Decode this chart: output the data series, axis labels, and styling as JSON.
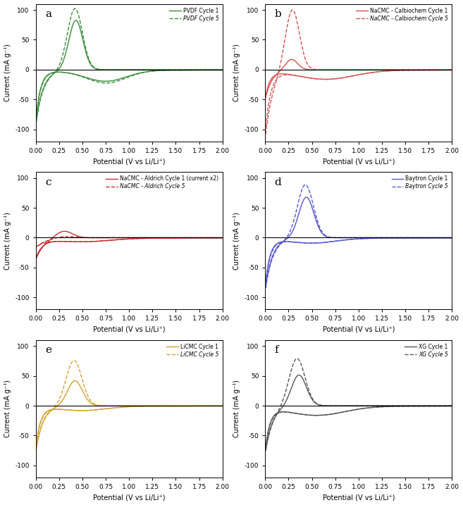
{
  "panels": [
    "a",
    "b",
    "c",
    "d",
    "e",
    "f"
  ],
  "colors": {
    "a": "#3a8a3a",
    "b": "#d45050",
    "c": "#c43030",
    "d": "#5555cc",
    "e": "#d4a030",
    "f": "#555555"
  },
  "legends": {
    "a": [
      "PVDF Cycle 1",
      "PVDF Cycle 5"
    ],
    "b": [
      "NaCMC - Calbiochem Cycle 1",
      "NaCMC - Calbiochem Cycle 5"
    ],
    "c": [
      "NaCMC - Aldrich Cycle 1 (current x2)",
      "NaCMC - Aldrich Cycle 5"
    ],
    "d": [
      "Baytron Cycle 1",
      "Baytron Cycle 5"
    ],
    "e": [
      "LiCMC Cycle 1",
      "LiCMC Cycle 5"
    ],
    "f": [
      "XG Cycle 1",
      "XG Cycle 5"
    ]
  },
  "xlim": [
    0.0,
    2.0
  ],
  "ylim": [
    -120,
    110
  ],
  "yticks": [
    -100,
    -50,
    0,
    50,
    100
  ],
  "xticks": [
    0.0,
    0.25,
    0.5,
    0.75,
    1.0,
    1.25,
    1.5,
    1.75,
    2.0
  ],
  "xlabel": "Potential (V vs Li/Li⁺)",
  "ylabel": "Current (mA g⁻¹)"
}
